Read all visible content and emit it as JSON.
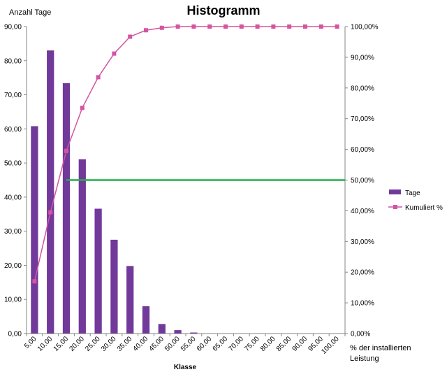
{
  "chart_data": {
    "type": "bar",
    "title": "Histogramm",
    "ylabel_left": "Anzahl Tage",
    "ylabel_right": "% der installierten Leistung",
    "xlabel": "Klasse",
    "categories": [
      "5,00",
      "10,00",
      "15,00",
      "20,00",
      "25,00",
      "30,00",
      "35,00",
      "40,00",
      "45,00",
      "50,00",
      "55,00",
      "60,00",
      "65,00",
      "70,00",
      "75,00",
      "80,00",
      "85,00",
      "90,00",
      "95,00",
      "100,00"
    ],
    "series": [
      {
        "name": "Tage",
        "type": "bar",
        "axis": "left",
        "color": "#70399a",
        "values": [
          60.8,
          83.0,
          73.4,
          51.1,
          36.6,
          27.5,
          19.8,
          8.0,
          2.8,
          1.0,
          0.3,
          0,
          0,
          0,
          0,
          0,
          0,
          0,
          0,
          0
        ]
      },
      {
        "name": "Kumuliert %",
        "type": "line",
        "axis": "right",
        "color": "#d454a2",
        "values": [
          17.0,
          39.5,
          59.5,
          73.5,
          83.5,
          91.2,
          96.7,
          98.8,
          99.6,
          100,
          100,
          100,
          100,
          100,
          100,
          100,
          100,
          100,
          100,
          100
        ]
      }
    ],
    "reference_line": {
      "axis": "right",
      "value": 50,
      "from_category": 2,
      "color": "#22b04a"
    },
    "ylim_left": [
      0,
      90
    ],
    "ylim_right": [
      0,
      100
    ],
    "yticks_left": [
      "0,00",
      "10,00",
      "20,00",
      "30,00",
      "40,00",
      "50,00",
      "60,00",
      "70,00",
      "80,00",
      "90,00"
    ],
    "yticks_right": [
      "0,00%",
      "10,00%",
      "20,00%",
      "30,00%",
      "40,00%",
      "50,00%",
      "60,00%",
      "70,00%",
      "80,00%",
      "90,00%",
      "100,00%"
    ],
    "grid": false,
    "legend_position": "right"
  }
}
